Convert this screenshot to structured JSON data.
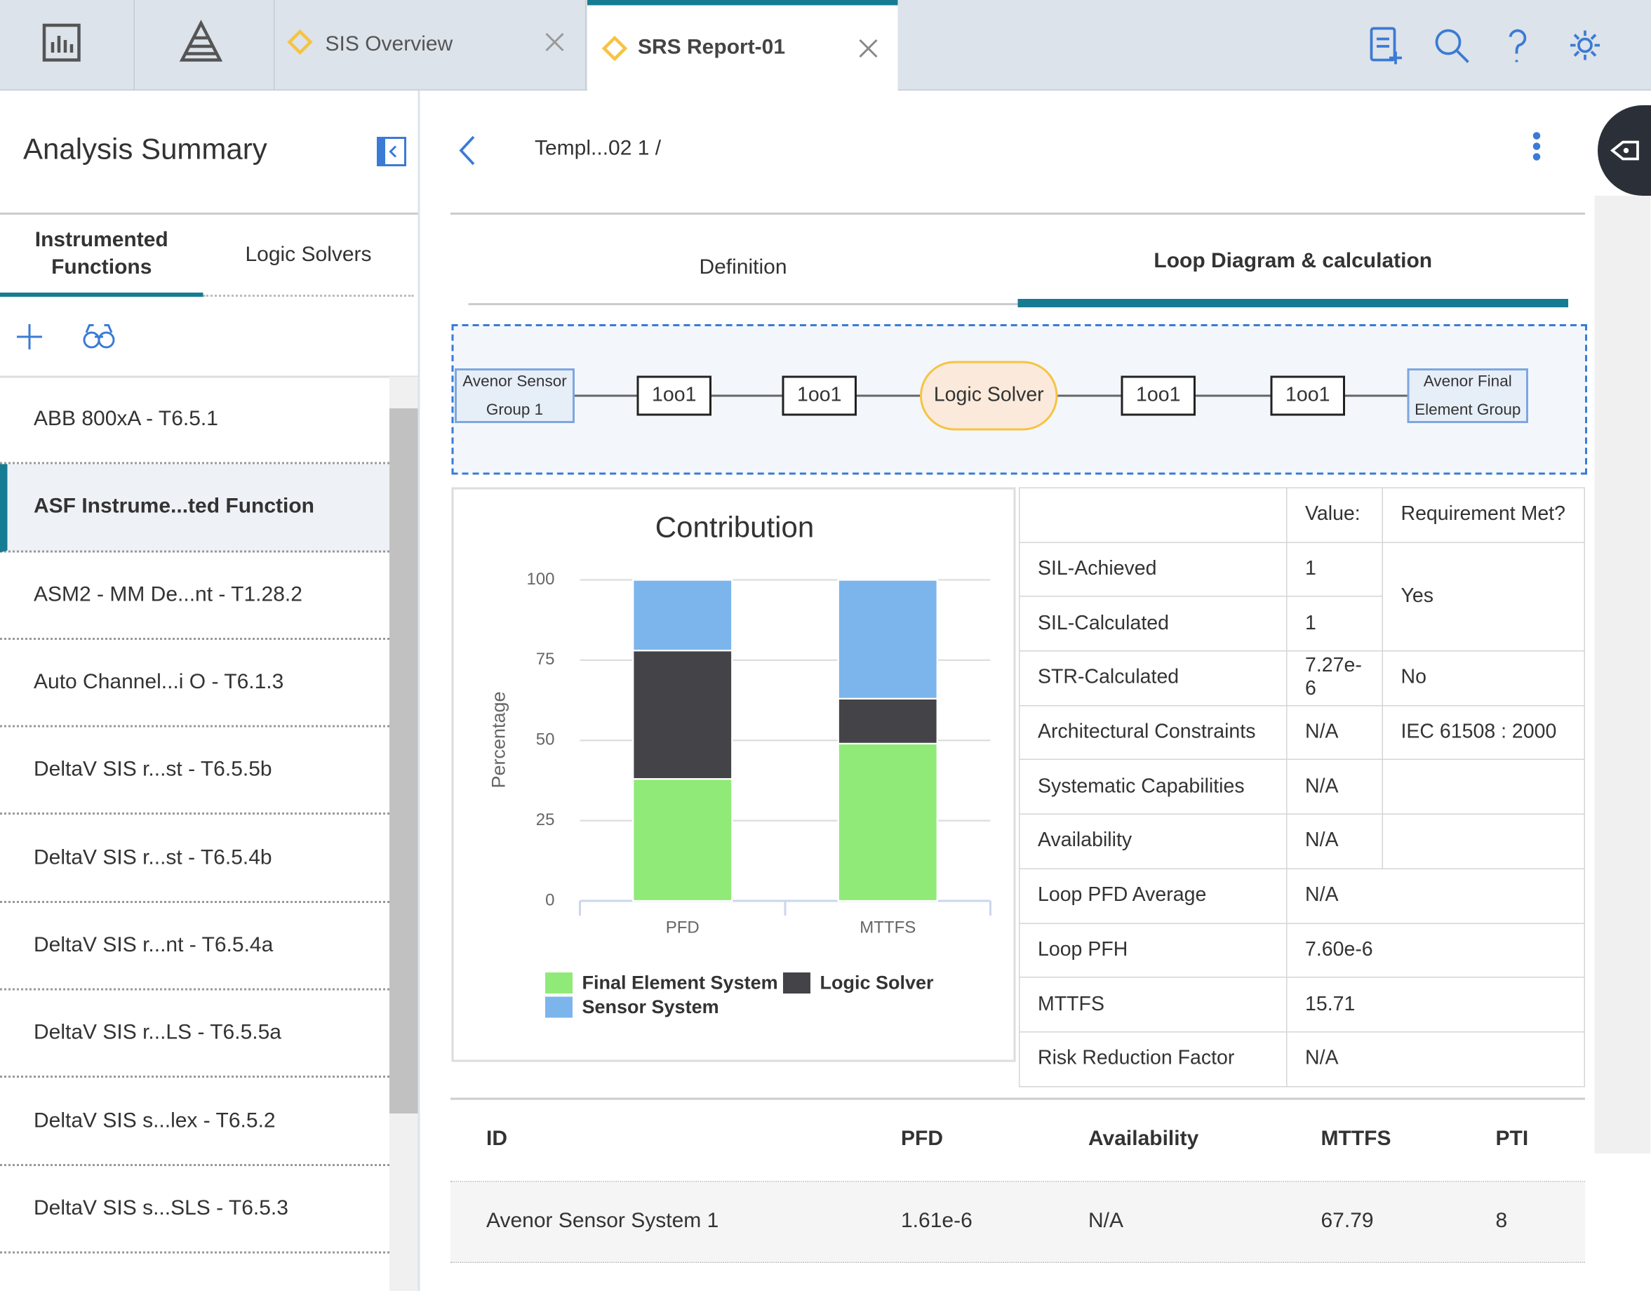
{
  "tabs": [
    "SIS Overview",
    "SRS Report-01"
  ],
  "sidebar": {
    "title": "Analysis Summary",
    "tabs": [
      "Instrumented Functions",
      "Logic Solvers"
    ],
    "items": [
      "ABB 800xA - T6.5.1",
      "ASF Instrume...ted Function",
      "ASM2 - MM De...nt - T1.28.2",
      "Auto Channel...i O - T6.1.3",
      "DeltaV SIS r...st - T6.5.5b",
      "DeltaV SIS r...st - T6.5.4b",
      "DeltaV SIS r...nt - T6.5.4a",
      "DeltaV SIS r...LS - T6.5.5a",
      "DeltaV SIS s...lex - T6.5.2",
      "DeltaV SIS s...SLS - T6.5.3"
    ]
  },
  "breadcrumb": "Templ...02 1 /",
  "detail_tabs": [
    "Definition",
    "Loop Diagram & calculation"
  ],
  "loop_nodes": [
    "Avenor Sensor Group 1",
    "1oo1",
    "1oo1",
    "Logic Solver",
    "1oo1",
    "1oo1",
    "Avenor Final Element Group"
  ],
  "chart_data": {
    "type": "bar",
    "stacked": true,
    "title": "Contribution",
    "y_label": "Percentage",
    "categories": [
      "PFD",
      "MTTFS"
    ],
    "series": [
      {
        "name": "Final Element System",
        "color": "#90ea78",
        "values": [
          38,
          49
        ]
      },
      {
        "name": "Logic Solver",
        "color": "#434348",
        "values": [
          40,
          14
        ]
      },
      {
        "name": "Sensor System",
        "color": "#7cb5ec",
        "values": [
          22,
          37
        ]
      }
    ],
    "ylim": [
      0,
      100
    ],
    "yticks": [
      0,
      25,
      50,
      75,
      100
    ],
    "grid": true
  },
  "results": {
    "headers": [
      "Value:",
      "Requirement Met?"
    ],
    "rows": [
      {
        "label": "SIL-Achieved",
        "value": "1",
        "requirement": "Yes"
      },
      {
        "label": "SIL-Calculated",
        "value": "1"
      },
      {
        "label": "STR-Calculated",
        "value": "7.27e-6",
        "requirement": "No"
      },
      {
        "label": "Architectural Constraints",
        "value": "N/A",
        "requirement": "IEC 61508 : 2000"
      },
      {
        "label": "Systematic Capabilities",
        "value": "N/A"
      },
      {
        "label": "Availability",
        "value": "N/A"
      },
      {
        "label": "Loop PFD Average",
        "value": "N/A"
      },
      {
        "label": "Loop PFH",
        "value": "7.60e-6"
      },
      {
        "label": "MTTFS",
        "value": "15.71"
      },
      {
        "label": "Risk Reduction Factor",
        "value": "N/A"
      }
    ]
  },
  "components": {
    "headers": [
      "ID",
      "PFD",
      "Availability",
      "MTTFS",
      "PTI"
    ],
    "rows": [
      [
        "Avenor Sensor System 1",
        "1.61e-6",
        "N/A",
        "67.79",
        "8"
      ]
    ]
  }
}
